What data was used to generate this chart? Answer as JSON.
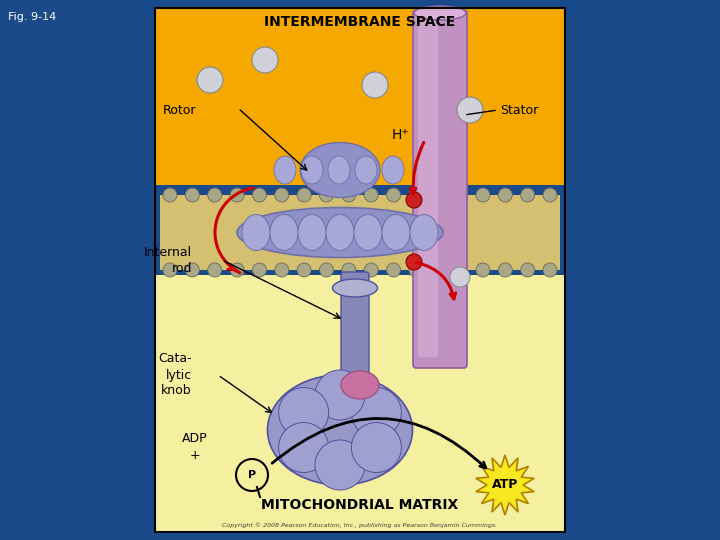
{
  "fig_label": "Fig. 9-14",
  "title_top": "INTERMEMBRANE SPACE",
  "title_bottom": "MITOCHONDRIAL MATRIX",
  "label_rotor": "Rotor",
  "label_stator": "Stator",
  "label_hplus": "H⁺",
  "label_internal_rod": "Internal\nrod",
  "label_catalytic": "Cata-\nlytic\nknob",
  "label_adp": "ADP\n+",
  "label_atp": "ATP",
  "label_pi": "P",
  "bg_outer": "#1a4a8a",
  "bg_panel_orange": "#f5a800",
  "bg_matrix": "#f5f0a0",
  "rotor_color": "#9090c8",
  "rotor_dark": "#7070a8",
  "stator_color": "#c090c0",
  "stator_light": "#d8b0d8",
  "rod_color": "#8888b8",
  "knob_color": "#9898c8",
  "pink_connect": "#c06080",
  "red_arrow": "#cc0000",
  "membrane_tan": "#d4c070",
  "membrane_gray": "#a8a888",
  "sphere_color": "#d0d0d8",
  "sphere_edge": "#888888",
  "copyright": "Copyright © 2008 Pearson Education, Inc., publishing as Pearson Benjamin Cummings."
}
